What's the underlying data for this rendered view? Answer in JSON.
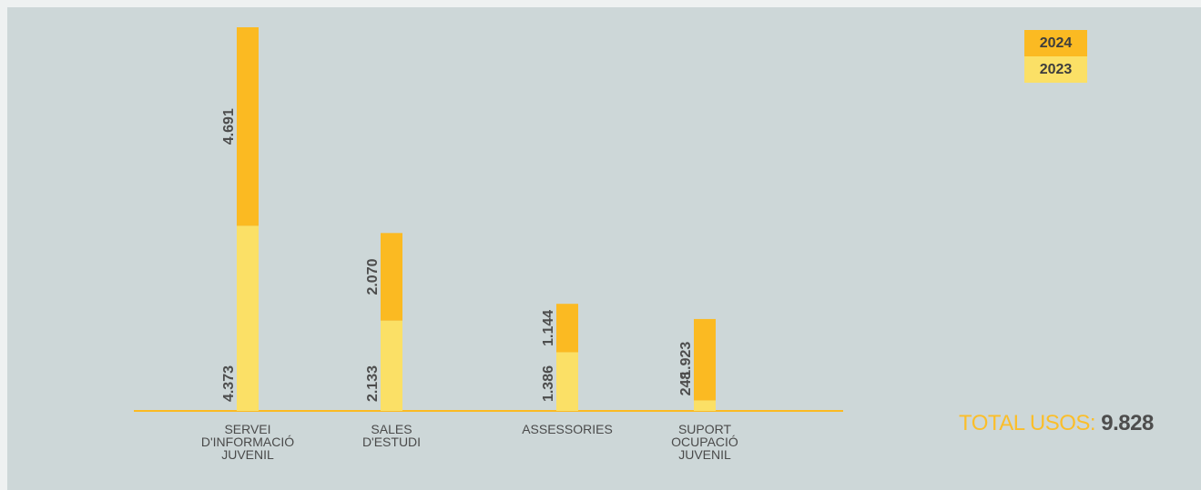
{
  "legend": [
    {
      "label": "2024",
      "color": "#fbba22"
    },
    {
      "label": "2023",
      "color": "#fbe066"
    }
  ],
  "total": {
    "label": "TOTAL USOS:",
    "value": "9.828"
  },
  "chart_data": {
    "type": "bar",
    "stacked": true,
    "categories": [
      [
        "SERVEI",
        "D'INFORMACIÓ",
        "JUVENIL"
      ],
      [
        "SALES",
        "D'ESTUDI"
      ],
      [
        "ASSESSORIES"
      ],
      [
        "SUPORT",
        "OCUPACIÓ",
        "JUVENIL"
      ]
    ],
    "series": [
      {
        "name": "2023",
        "color": "#fbe066",
        "values": [
          4373,
          2133,
          1386,
          248
        ],
        "labels": [
          "4.373",
          "2.133",
          "1.386",
          "248"
        ]
      },
      {
        "name": "2024",
        "color": "#fbba22",
        "values": [
          4691,
          2070,
          1144,
          1923
        ],
        "labels": [
          "4.691",
          "2.070",
          "1.144",
          "1.923"
        ]
      }
    ],
    "axis_color": "#fbba22",
    "grid": false,
    "legend_position": "top-right",
    "value_labels": "rotated"
  }
}
